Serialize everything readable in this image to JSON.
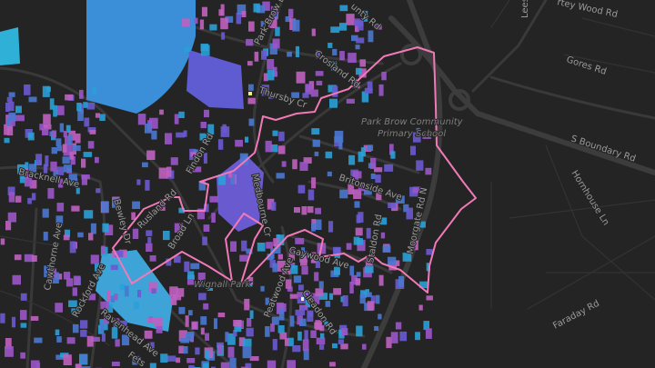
{
  "map": {
    "theme": "dark",
    "boundary_color": "#f07ab8",
    "building_color_scale": [
      "#2aa0d8",
      "#4a78d0",
      "#6a5ad0",
      "#9b55c8",
      "#c060c0"
    ],
    "roads": {
      "park_brow_dr": "Park Brow Dr",
      "county_rd": "unty Rd",
      "lees": "Lees",
      "wood_rd": "rtey Wood Rd",
      "gores_rd": "Gores Rd",
      "crosland_rd": "Crosland Rd",
      "thursby_cr": "Thursby Cr",
      "s_boundary_rd": "S Boundary Rd",
      "hornhouse_ln": "Hornhouse Ln",
      "findon_rd": "Findon Rd",
      "bracknell_ave": "Bracknell Ave",
      "bewley_dr": "Bewley Dr",
      "rusland_rd": "Rusland Rd",
      "broad_ln": "Broad Ln",
      "medbourne_cr": "Medbourne Cr",
      "britonside_ave": "Britonside Ave",
      "moorgate_rd_n": "Moorgate Rd N",
      "staldon_rd": "Staldon Rd",
      "gaywood_ave": "Gaywood Ave",
      "peatwood_ave": "Peatwood Ave",
      "cleadon_rd": "Cleadon Rd",
      "cawthorne_ave": "Cawthorne Ave",
      "rockford_ave": "Rockford Ave",
      "ravenhead_ave": "Ravenhead Ave",
      "faraday_rd": "Faraday Rd",
      "fets": "Fets"
    },
    "places": {
      "school_line1": "Park Brow Community",
      "school_line2": "Primary School",
      "park": "Wignall Park"
    }
  }
}
